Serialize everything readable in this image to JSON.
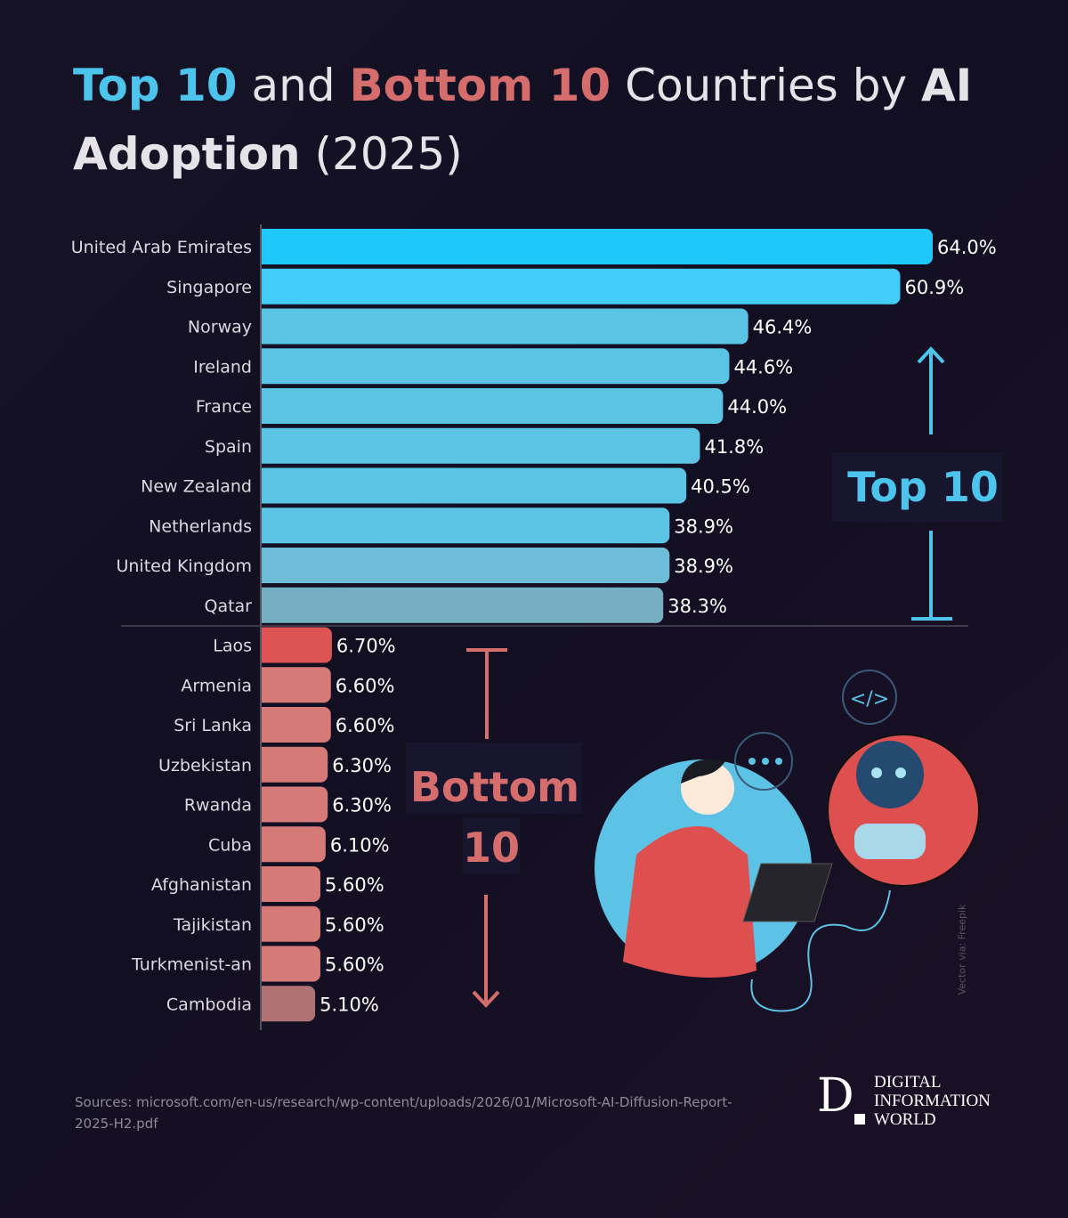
{
  "title": {
    "part1": "Top 10",
    "part2": " and ",
    "part3": "Bottom 10",
    "part4": " Countries by ",
    "part5": "AI",
    "part6": "Adoption",
    "part7": " (2025)"
  },
  "chart_data": {
    "type": "bar",
    "orientation": "horizontal",
    "categories": [
      "United Arab Emirates",
      "Singapore",
      "Norway",
      "Ireland",
      "France",
      "Spain",
      "New Zealand",
      "Netherlands",
      "United Kingdom",
      "Qatar",
      "Laos",
      "Armenia",
      "Sri Lanka",
      "Uzbekistan",
      "Rwanda",
      "Cuba",
      "Afghanistan",
      "Tajikistan",
      "Turkmenist-an",
      "Cambodia"
    ],
    "values": [
      64.0,
      60.9,
      46.4,
      44.6,
      44.0,
      41.8,
      40.5,
      38.9,
      38.9,
      38.3,
      6.7,
      6.6,
      6.6,
      6.3,
      6.3,
      6.1,
      5.6,
      5.6,
      5.6,
      5.1
    ],
    "value_labels": [
      "64.0%",
      "60.9%",
      "46.4%",
      "44.6%",
      "44.0%",
      "41.8%",
      "40.5%",
      "38.9%",
      "38.9%",
      "38.3%",
      "6.70%",
      "6.60%",
      "6.60%",
      "6.30%",
      "6.30%",
      "6.10%",
      "5.60%",
      "5.60%",
      "5.60%",
      "5.10%"
    ],
    "colors": [
      "#1ec8fa",
      "#42cdf8",
      "#5bc3e4",
      "#5bc3e4",
      "#5bc3e4",
      "#5bc3e4",
      "#5bc3e4",
      "#5bc3e4",
      "#6fbcd8",
      "#74aec0",
      "#de5353",
      "#d67a78",
      "#d67a78",
      "#d67a78",
      "#d67a78",
      "#d67a78",
      "#d67a78",
      "#d67a78",
      "#d67a78",
      "#b07272"
    ],
    "xlim": [
      0,
      64
    ],
    "grid": false,
    "annotations": {
      "top": "Top 10",
      "bottom_line1": "Bottom",
      "bottom_line2": "10"
    }
  },
  "source": "Sources: microsoft.com/en-us/research/wp-content/uploads/2026/01/Microsoft-AI-Diffusion-Report-2025-H2.pdf",
  "credit": "Vector via: Freepik",
  "logo": {
    "letter": "D",
    "line1": "DIGITAL",
    "line2": "INFORMATION",
    "line3": "WORLD"
  }
}
